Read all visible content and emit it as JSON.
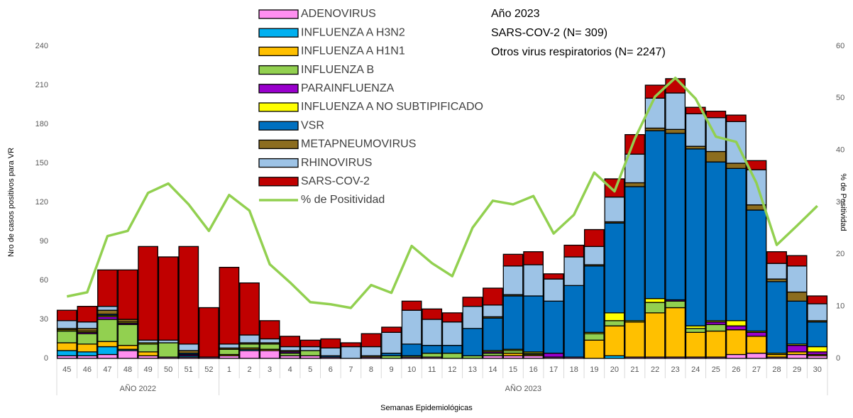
{
  "chart_data": {
    "type": "bar",
    "annotations": [
      "Año 2023",
      "SARS-COV-2 (N= 309)",
      "Otros virus respiratorios (N= 2247)"
    ],
    "y_label": "Nro de casos positivos para VR",
    "y2_label": "% de Positividad",
    "x_label": "Semanas Epidemiológicas",
    "categories": [
      "45",
      "46",
      "47",
      "48",
      "49",
      "50",
      "51",
      "52",
      "1",
      "2",
      "3",
      "4",
      "5",
      "6",
      "7",
      "8",
      "9",
      "10",
      "11",
      "12",
      "13",
      "14",
      "15",
      "16",
      "17",
      "18",
      "19",
      "20",
      "21",
      "22",
      "23",
      "24",
      "25",
      "26",
      "27",
      "28",
      "29",
      "30"
    ],
    "groups": [
      {
        "label": "AÑO 2022",
        "span": 8
      },
      {
        "label": "AÑO 2023",
        "span": 30
      }
    ],
    "ylim": [
      0,
      240
    ],
    "yticks": [
      0,
      30,
      60,
      90,
      120,
      150,
      180,
      210,
      240
    ],
    "y2lim": [
      0,
      60
    ],
    "y2ticks": [
      0,
      10,
      20,
      30,
      40,
      50,
      60
    ],
    "stacked": true,
    "grid": false,
    "legend": "top-center",
    "series": [
      {
        "name": "ADENOVIRUS",
        "color": "#ff8ff0",
        "values": [
          2,
          2,
          3,
          6,
          2,
          1,
          1,
          1,
          2,
          6,
          6,
          2,
          2,
          1,
          0,
          1,
          0,
          1,
          1,
          0,
          0,
          2,
          2,
          2,
          1,
          1,
          0,
          0,
          1,
          1,
          1,
          1,
          1,
          3,
          4,
          1,
          3,
          2
        ]
      },
      {
        "name": "INFLUENZA A H3N2",
        "color": "#00b0f0",
        "values": [
          4,
          3,
          6,
          1,
          0,
          0,
          1,
          0,
          0,
          1,
          0,
          0,
          0,
          0,
          0,
          0,
          0,
          0,
          0,
          0,
          0,
          0,
          0,
          0,
          0,
          0,
          0,
          2,
          0,
          0,
          0,
          0,
          0,
          0,
          0,
          0,
          0,
          0
        ]
      },
      {
        "name": "INFLUENZA A H1N1",
        "color": "#ffc000",
        "values": [
          6,
          6,
          4,
          3,
          3,
          0,
          0,
          0,
          1,
          1,
          1,
          0,
          0,
          0,
          0,
          0,
          0,
          0,
          0,
          0,
          0,
          0,
          2,
          1,
          0,
          0,
          14,
          23,
          27,
          34,
          38,
          19,
          20,
          19,
          13,
          2,
          2,
          1
        ]
      },
      {
        "name": "INFLUENZA B",
        "color": "#92d050",
        "values": [
          9,
          8,
          17,
          16,
          6,
          11,
          0,
          0,
          4,
          3,
          4,
          2,
          4,
          0,
          0,
          0,
          2,
          1,
          3,
          4,
          2,
          2,
          2,
          1,
          0,
          0,
          5,
          4,
          0,
          8,
          5,
          3,
          5,
          0,
          0,
          0,
          0,
          0
        ]
      },
      {
        "name": "PARAINFLUENZA",
        "color": "#9900cc",
        "values": [
          0,
          1,
          2,
          1,
          0,
          0,
          1,
          0,
          0,
          0,
          0,
          1,
          0,
          0,
          0,
          0,
          0,
          0,
          0,
          0,
          0,
          1,
          0,
          0,
          3,
          0,
          0,
          0,
          0,
          0,
          1,
          0,
          2,
          3,
          3,
          0,
          5,
          2
        ]
      },
      {
        "name": "INFLUENZA A NO SUBTIPIFICADO",
        "color": "#ffff00",
        "values": [
          1,
          1,
          1,
          1,
          1,
          0,
          0,
          0,
          0,
          0,
          0,
          0,
          0,
          0,
          0,
          0,
          0,
          0,
          0,
          0,
          0,
          1,
          1,
          1,
          0,
          0,
          1,
          6,
          1,
          3,
          0,
          2,
          1,
          4,
          1,
          1,
          1,
          4
        ]
      },
      {
        "name": "VSR",
        "color": "#0070c0",
        "values": [
          0,
          0,
          1,
          0,
          0,
          0,
          1,
          0,
          0,
          0,
          0,
          0,
          0,
          1,
          0,
          0,
          2,
          9,
          6,
          6,
          21,
          25,
          41,
          43,
          40,
          55,
          51,
          69,
          103,
          129,
          128,
          136,
          122,
          117,
          93,
          55,
          33,
          19
        ]
      },
      {
        "name": "METAPNEUMOVIRUS",
        "color": "#8c6d1f",
        "values": [
          1,
          2,
          3,
          2,
          0,
          0,
          2,
          0,
          1,
          1,
          1,
          1,
          0,
          0,
          0,
          1,
          0,
          0,
          0,
          0,
          0,
          1,
          1,
          0,
          0,
          0,
          1,
          1,
          3,
          2,
          3,
          2,
          8,
          4,
          4,
          2,
          7,
          1
        ]
      },
      {
        "name": "RHINOVIRUS",
        "color": "#9dc3e6",
        "values": [
          6,
          5,
          3,
          0,
          2,
          2,
          5,
          0,
          3,
          6,
          3,
          3,
          3,
          6,
          9,
          7,
          16,
          26,
          20,
          18,
          17,
          9,
          22,
          24,
          17,
          22,
          14,
          19,
          22,
          23,
          28,
          25,
          26,
          32,
          27,
          12,
          20,
          13
        ]
      },
      {
        "name": "SARS-COV-2",
        "color": "#c00000",
        "values": [
          8,
          12,
          28,
          38,
          72,
          64,
          75,
          38,
          59,
          40,
          14,
          8,
          5,
          7,
          3,
          10,
          4,
          7,
          8,
          7,
          7,
          13,
          9,
          10,
          4,
          9,
          13,
          14,
          15,
          10,
          11,
          5,
          5,
          5,
          7,
          9,
          8,
          6
        ]
      },
      {
        "name": "% de Positividad",
        "type": "line",
        "axis": "y2",
        "color": "#92d050",
        "values": [
          11.9,
          12.7,
          23.5,
          24.5,
          31.8,
          33.6,
          29.6,
          24.5,
          31.4,
          28.4,
          18.1,
          14.6,
          10.8,
          10.4,
          9.7,
          14.1,
          12.6,
          21.6,
          18.3,
          15.8,
          25.1,
          30.3,
          29.6,
          31.2,
          24.0,
          27.6,
          35.7,
          32.1,
          42.2,
          50.3,
          53.9,
          49.9,
          42.6,
          41.6,
          33.7,
          21.8,
          25.5,
          29.3
        ]
      }
    ]
  }
}
